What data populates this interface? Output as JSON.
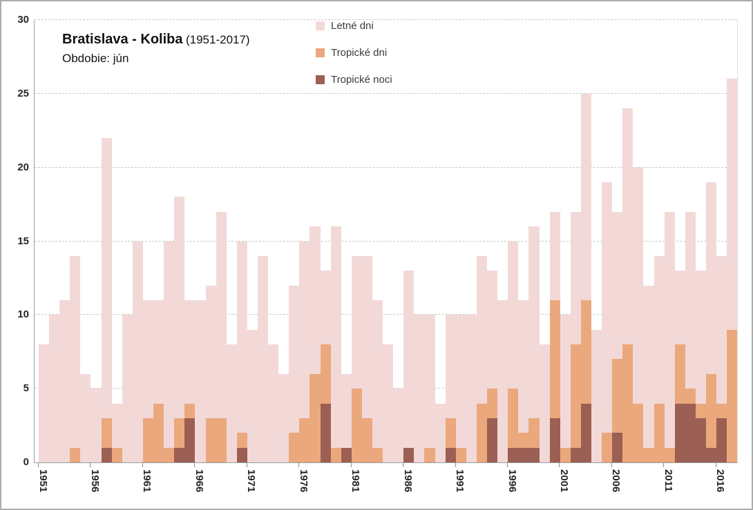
{
  "title": {
    "main": "Bratislava - Koliba",
    "period": "(1951-2017)",
    "subtitle": "Obdobie: jún"
  },
  "legend": {
    "items": [
      {
        "label": "Letné dni",
        "color": "#F2D9D8"
      },
      {
        "label": "Tropické dni",
        "color": "#EBA87C"
      },
      {
        "label": "Tropické noci",
        "color": "#9C5F53"
      }
    ]
  },
  "chart_data": {
    "type": "bar",
    "subtype": "overlay-columns",
    "title": "Bratislava - Koliba (1951-2017), Obdobie: jún",
    "xlabel": "",
    "ylabel": "",
    "ylim": [
      0,
      30
    ],
    "yticks": [
      0,
      5,
      10,
      15,
      20,
      25,
      30
    ],
    "grid": "horizontal-dashed",
    "legend_position": "top-center",
    "xtick_label_years": [
      1951,
      1956,
      1961,
      1966,
      1971,
      1976,
      1981,
      1986,
      1991,
      1996,
      2001,
      2006,
      2011,
      2016
    ],
    "years": [
      1951,
      1952,
      1953,
      1954,
      1955,
      1956,
      1957,
      1958,
      1959,
      1960,
      1961,
      1962,
      1963,
      1964,
      1965,
      1966,
      1967,
      1968,
      1969,
      1970,
      1971,
      1972,
      1973,
      1974,
      1975,
      1976,
      1977,
      1978,
      1979,
      1980,
      1981,
      1982,
      1983,
      1984,
      1985,
      1986,
      1987,
      1988,
      1989,
      1990,
      1991,
      1992,
      1993,
      1994,
      1995,
      1996,
      1997,
      1998,
      1999,
      2000,
      2001,
      2002,
      2003,
      2004,
      2005,
      2006,
      2007,
      2008,
      2009,
      2010,
      2011,
      2012,
      2013,
      2014,
      2015,
      2016,
      2017
    ],
    "series": [
      {
        "name": "Letné dni",
        "color": "#F2D9D8",
        "values": [
          8,
          10,
          11,
          14,
          6,
          5,
          22,
          4,
          10,
          15,
          11,
          11,
          15,
          18,
          11,
          11,
          12,
          17,
          8,
          15,
          9,
          14,
          8,
          6,
          12,
          15,
          16,
          13,
          16,
          6,
          14,
          14,
          11,
          8,
          5,
          13,
          10,
          10,
          4,
          10,
          10,
          10,
          14,
          13,
          11,
          15,
          11,
          16,
          8,
          17,
          10,
          17,
          25,
          9,
          19,
          17,
          24,
          20,
          12,
          14,
          17,
          13,
          17,
          13,
          19,
          14,
          26
        ]
      },
      {
        "name": "Tropické dni",
        "color": "#EBA87C",
        "values": [
          0,
          0,
          0,
          1,
          0,
          0,
          3,
          1,
          0,
          0,
          3,
          4,
          1,
          3,
          4,
          0,
          3,
          3,
          0,
          2,
          0,
          0,
          0,
          0,
          2,
          3,
          6,
          8,
          1,
          0,
          5,
          3,
          1,
          0,
          0,
          0,
          0,
          1,
          0,
          3,
          1,
          0,
          4,
          5,
          0,
          5,
          2,
          3,
          0,
          11,
          1,
          8,
          11,
          0,
          2,
          7,
          8,
          4,
          1,
          4,
          1,
          8,
          5,
          4,
          6,
          4,
          9
        ]
      },
      {
        "name": "Tropické noci",
        "color": "#9C5F53",
        "values": [
          0,
          0,
          0,
          0,
          0,
          0,
          1,
          0,
          0,
          0,
          0,
          0,
          0,
          1,
          3,
          0,
          0,
          0,
          0,
          1,
          0,
          0,
          0,
          0,
          0,
          0,
          0,
          4,
          0,
          1,
          0,
          0,
          0,
          0,
          0,
          1,
          0,
          0,
          0,
          1,
          0,
          0,
          0,
          3,
          0,
          1,
          1,
          1,
          0,
          3,
          0,
          1,
          4,
          0,
          0,
          2,
          0,
          0,
          0,
          0,
          0,
          4,
          4,
          3,
          1,
          3,
          0
        ]
      }
    ]
  }
}
